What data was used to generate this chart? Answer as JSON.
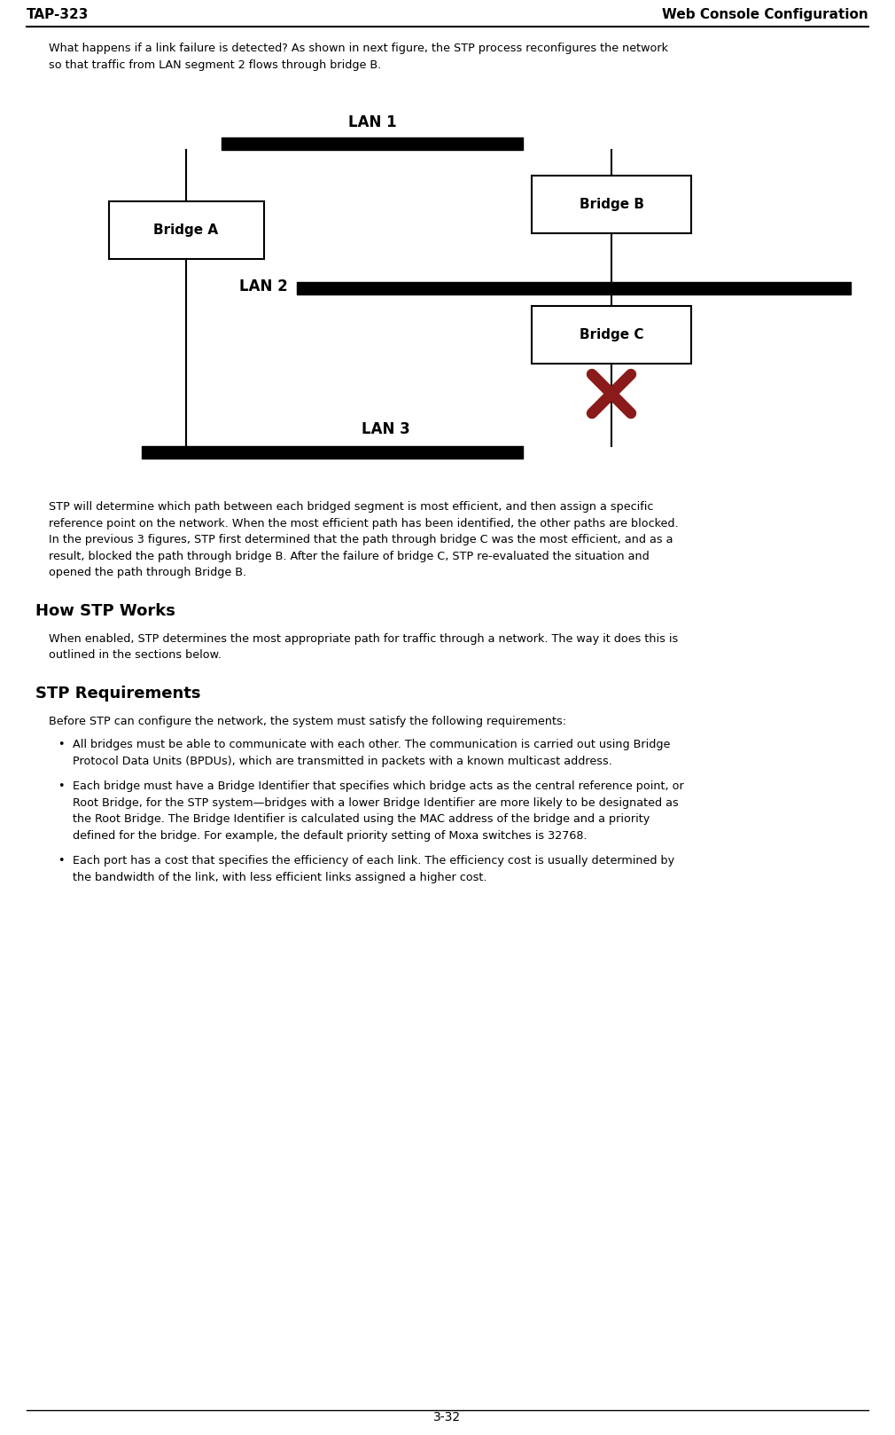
{
  "page_title_left": "TAP-323",
  "page_title_right": "Web Console Configuration",
  "page_number": "3-32",
  "intro_line1": "What happens if a link failure is detected? As shown in next figure, the STP process reconfigures the network",
  "intro_line2": "so that traffic from LAN segment 2 flows through bridge B.",
  "lan1_label": "LAN 1",
  "lan2_label": "LAN 2",
  "lan3_label": "LAN 3",
  "bridge_a_label": "Bridge A",
  "bridge_b_label": "Bridge B",
  "bridge_c_label": "Bridge C",
  "stp_body": [
    "STP will determine which path between each bridged segment is most efficient, and then assign a specific",
    "reference point on the network. When the most efficient path has been identified, the other paths are blocked.",
    "In the previous 3 figures, STP first determined that the path through bridge C was the most efficient, and as a",
    "result, blocked the path through bridge B. After the failure of bridge C, STP re-evaluated the situation and",
    "opened the path through Bridge B."
  ],
  "how_stp_works_title": "How STP Works",
  "how_stp_works": [
    "When enabled, STP determines the most appropriate path for traffic through a network. The way it does this is",
    "outlined in the sections below."
  ],
  "stp_req_title": "STP Requirements",
  "stp_req_intro": "Before STP can configure the network, the system must satisfy the following requirements:",
  "bullets": [
    [
      "All bridges must be able to communicate with each other. The communication is carried out using Bridge",
      "Protocol Data Units (BPDUs), which are transmitted in packets with a known multicast address."
    ],
    [
      "Each bridge must have a Bridge Identifier that specifies which bridge acts as the central reference point, or",
      "Root Bridge, for the STP system—bridges with a lower Bridge Identifier are more likely to be designated as",
      "the Root Bridge. The Bridge Identifier is calculated using the MAC address of the bridge and a priority",
      "defined for the bridge. For example, the default priority setting of Moxa switches is 32768."
    ],
    [
      "Each port has a cost that specifies the efficiency of each link. The efficiency cost is usually determined by",
      "the bandwidth of the link, with less efficient links assigned a higher cost."
    ]
  ],
  "bg_color": "#ffffff",
  "text_color": "#000000",
  "x_color": "#8b1a1a",
  "font_body": 9.2,
  "font_header": 11,
  "font_section": 13,
  "font_diagram": 11,
  "font_page_num": 10
}
